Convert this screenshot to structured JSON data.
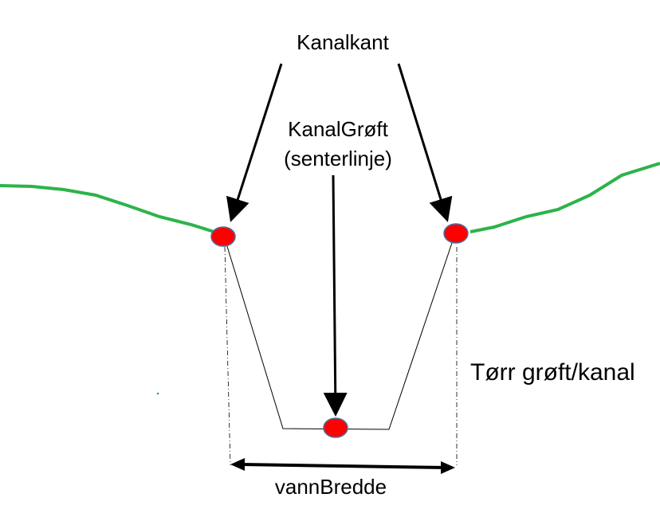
{
  "labels": {
    "bank": "Kanalkant",
    "ditch_line1": "KanalGrøft",
    "ditch_line2": "(senterlinje)",
    "dry": "Tørr grøft/kanal",
    "width": "vannBredde"
  },
  "colors": {
    "terrain": "#2db34a",
    "point_fill": "#ff0000",
    "point_stroke": "#4a6fa5",
    "line": "#000000"
  }
}
